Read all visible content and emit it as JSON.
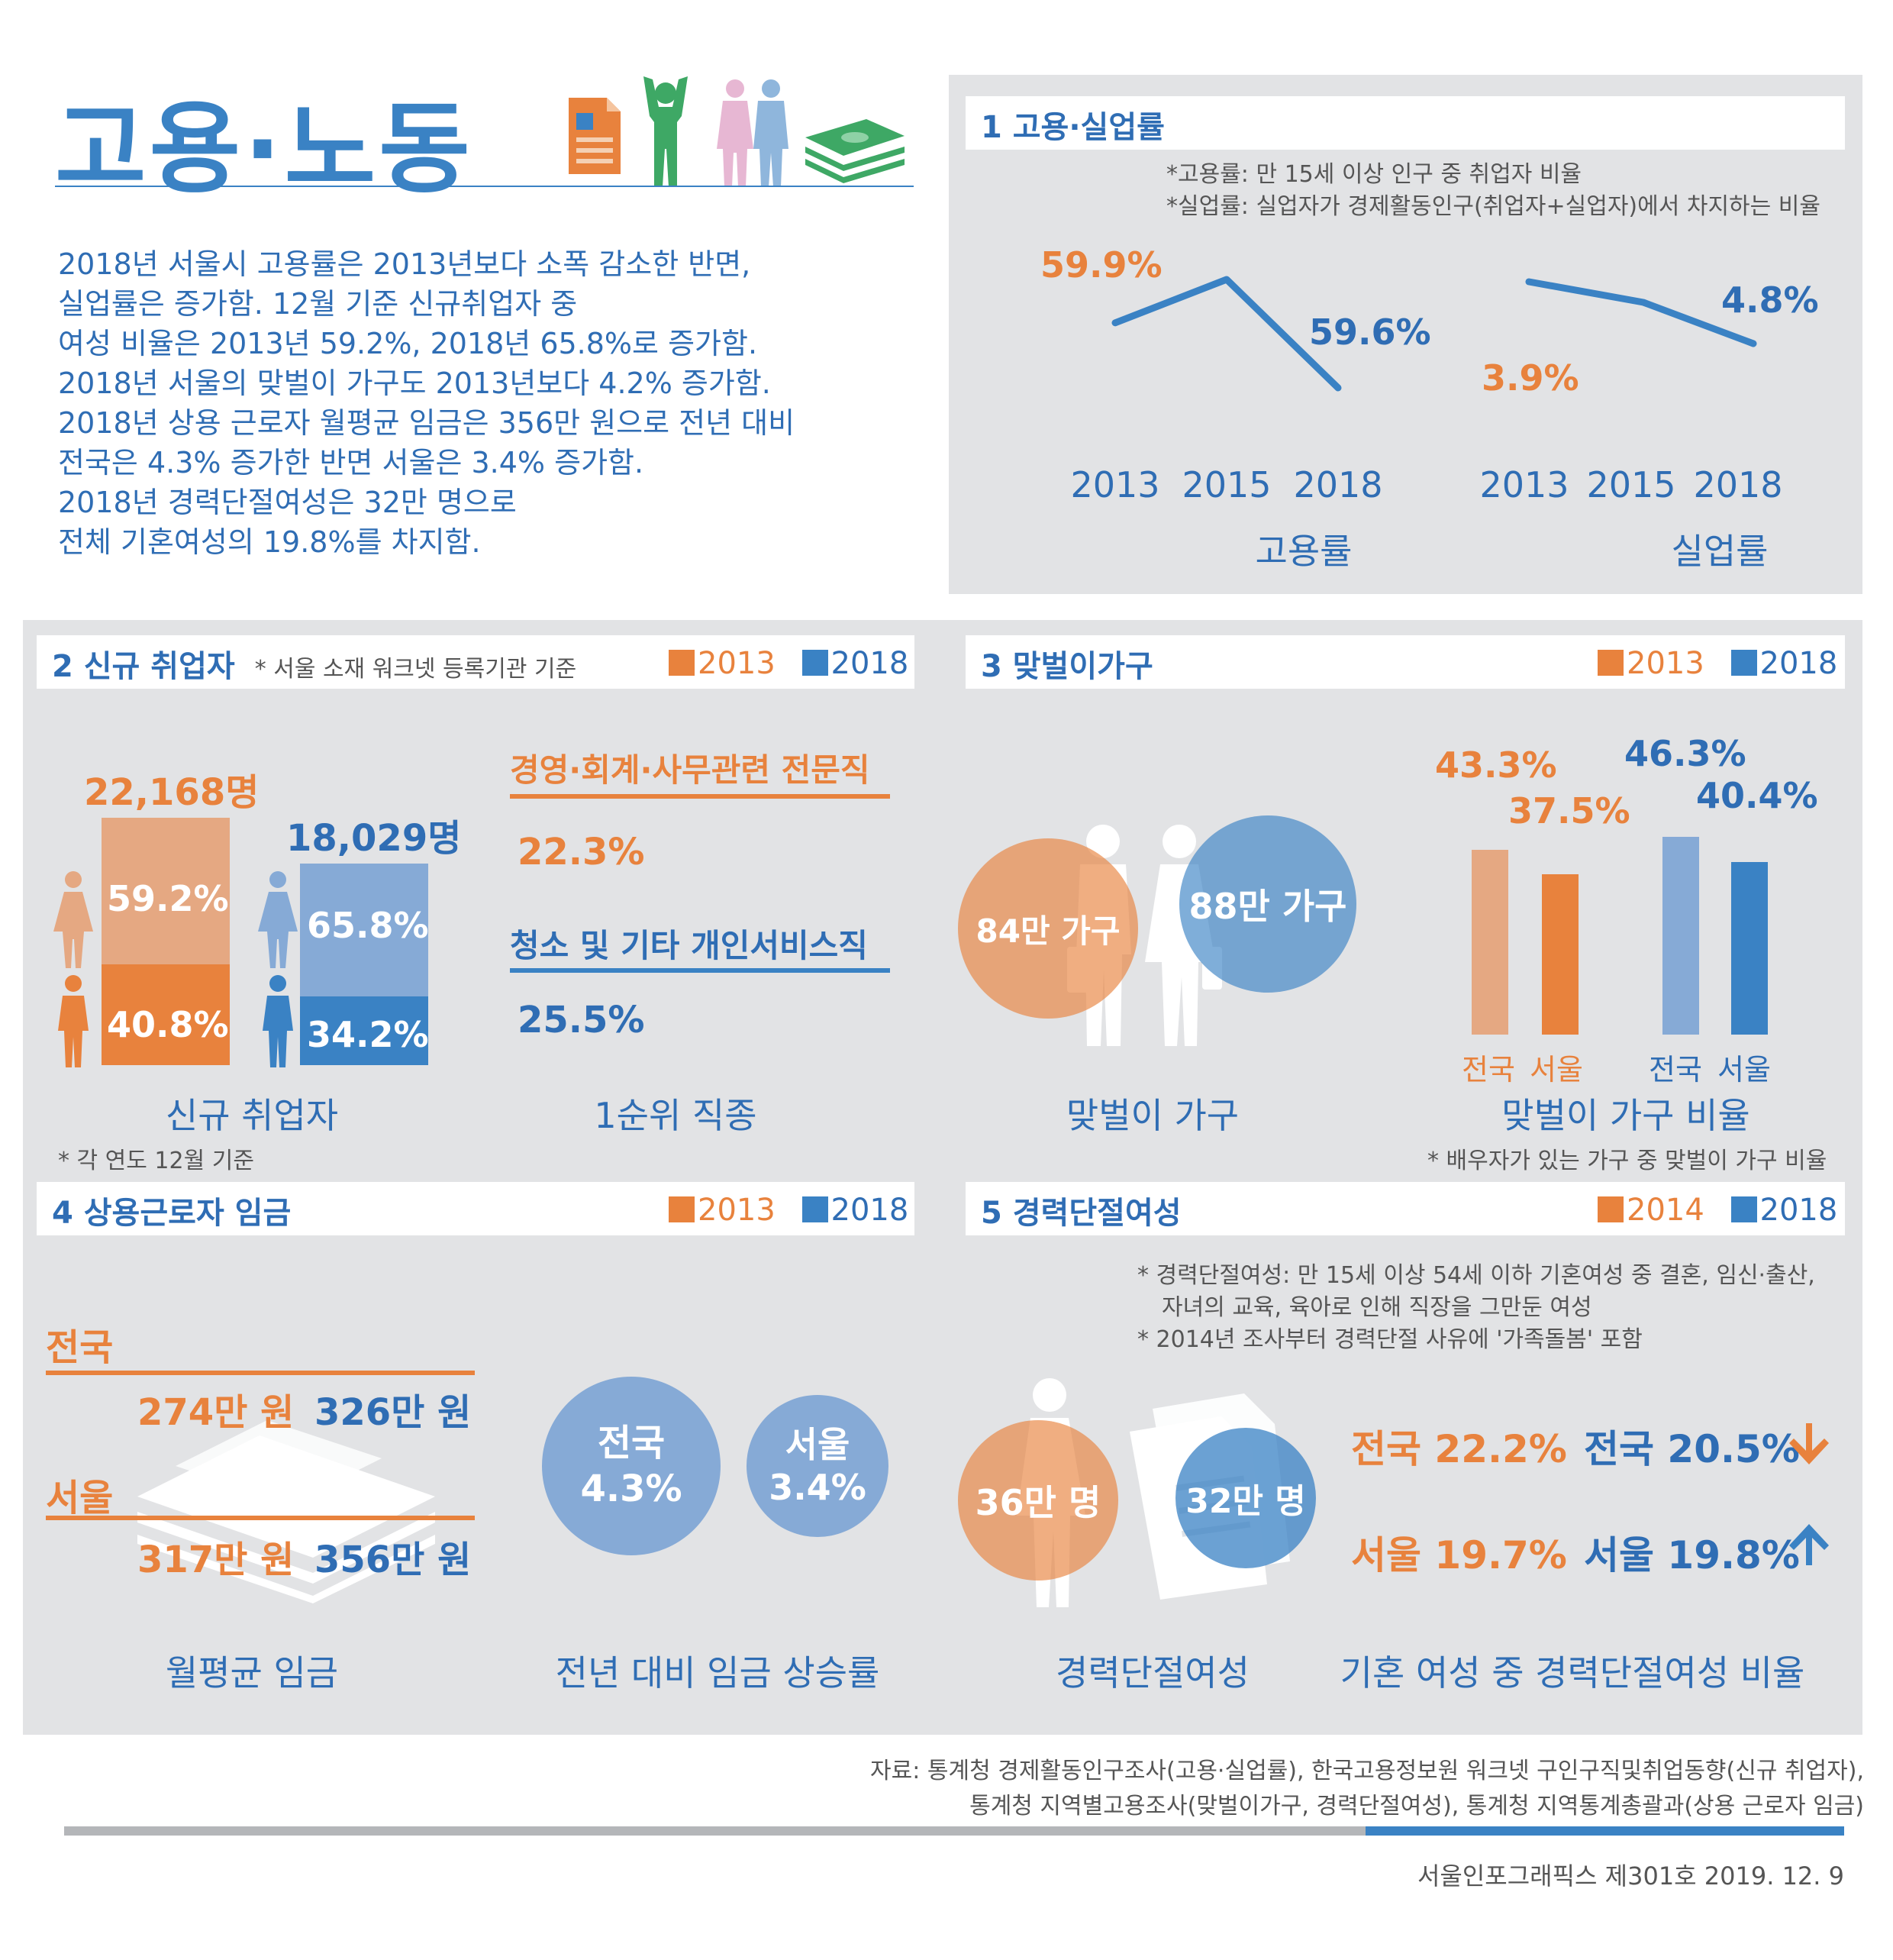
{
  "header": {
    "title": "고용·노동",
    "intro": [
      "2018년 서울시 고용률은 2013년보다 소폭 감소한 반면,",
      "실업률은 증가함. 12월 기준 신규취업자 중",
      "여성 비율은 2013년 59.2%, 2018년 65.8%로 증가함.",
      "2018년 서울의 맞벌이 가구도 2013년보다 4.2% 증가함.",
      "2018년 상용 근로자 월평균 임금은 356만 원으로 전년 대비",
      "전국은 4.3% 증가한 반면 서울은 3.4% 증가함.",
      "2018년 경력단절여성은 32만 명으로",
      "전체 기혼여성의 19.8%를 차지함."
    ]
  },
  "colors": {
    "orange": "#e8823d",
    "blue": "#3a82c4",
    "light_orange": "#e5a882",
    "light_blue": "#86aad6",
    "panel": "#e2e3e5"
  },
  "icons": [
    "document-icon",
    "cheering-person-icon",
    "couple-icon",
    "money-stack-icon",
    "female-icon",
    "male-icon",
    "couple-silhouette-icon",
    "woman-silhouette-icon",
    "papers-icon",
    "document-stack-icon",
    "arrow-down-icon",
    "arrow-up-icon"
  ],
  "section1": {
    "title": "1  고용·실업률",
    "notes": [
      "*고용률: 만 15세 이상 인구 중 취업자 비율",
      "*실업률: 실업자가 경제활동인구(취업자+실업자)에서 차지하는 비율"
    ],
    "emp_labels": [
      "59.9%",
      "59.6%"
    ],
    "unemp_labels": [
      "3.9%",
      "4.8%"
    ],
    "emp_caption": "고용률",
    "unemp_caption": "실업률"
  },
  "section2": {
    "title": "2  신규 취업자",
    "note": "*  서울 소재 워크넷 등록기관 기준",
    "legend": [
      "2013",
      "2018"
    ],
    "total_2013": "22,168명",
    "total_2018": "18,029명",
    "female_2013": "59.2%",
    "male_2013": "40.8%",
    "female_2018": "65.8%",
    "male_2018": "34.2%",
    "top_job_2013": "경영·회계·사무관련 전문직",
    "top_job_2013_value": "22.3%",
    "top_job_2018": "청소 및 기타 개인서비스직",
    "top_job_2018_value": "25.5%",
    "caption_left": "신규 취업자",
    "caption_right": "1순위 직종",
    "footnote": "*  각 연도 12월 기준"
  },
  "section3": {
    "title": "3  맞벌이가구",
    "legend": [
      "2013",
      "2018"
    ],
    "households_2013": "84만 가구",
    "households_2018": "88만 가구",
    "bar_labels": [
      "43.3%",
      "37.5%",
      "46.3%",
      "40.4%"
    ],
    "bar_categories": [
      "전국",
      "서울",
      "전국",
      "서울"
    ],
    "caption_left": "맞벌이 가구",
    "caption_right": "맞벌이 가구 비율",
    "footnote": "* 배우자가 있는 가구 중 맞벌이 가구 비율"
  },
  "section4": {
    "title": "4  상용근로자 임금",
    "legend": [
      "2013",
      "2018"
    ],
    "national_label": "전국",
    "national_2013": "274만 원",
    "national_2018": "326만 원",
    "seoul_label": "서울",
    "seoul_2013": "317만 원",
    "seoul_2018": "356만 원",
    "growth_national_label": "전국",
    "growth_national_value": "4.3%",
    "growth_seoul_label": "서울",
    "growth_seoul_value": "3.4%",
    "caption_left": "월평균 임금",
    "caption_right": "전년 대비 임금 상승률"
  },
  "section5": {
    "title": "5  경력단절여성",
    "legend": [
      "2014",
      "2018"
    ],
    "notes": [
      "* 경력단절여성: 만 15세 이상 54세 이하 기혼여성 중 결혼, 임신·출산,",
      "자녀의 교육, 육아로 인해 직장을 그만둔 여성",
      "* 2014년 조사부터 경력단절 사유에 '가족돌봄' 포함"
    ],
    "count_2014": "36만 명",
    "count_2018": "32만 명",
    "national_2014": "전국 22.2%",
    "national_2018": "전국 20.5%",
    "seoul_2014": "서울 19.7%",
    "seoul_2018": "서울 19.8%",
    "caption_left": "경력단절여성",
    "caption_right": "기혼 여성 중 경력단절여성 비율"
  },
  "footer": {
    "source": [
      "자료: 통계청 경제활동인구조사(고용·실업률), 한국고용정보원 워크넷 구인구직및취업동향(신규 취업자),",
      "통계청 지역별고용조사(맞벌이가구, 경력단절여성), 통계청 지역통계총괄과(상용 근로자 임금)"
    ],
    "issue": "서울인포그래픽스 제301호 2019. 12. 9"
  },
  "chart_data": [
    {
      "type": "line",
      "title": "고용률",
      "x": [
        "2013",
        "2015",
        "2018"
      ],
      "series": [
        {
          "values": [
            59.9,
            60.1,
            59.6
          ]
        }
      ]
    },
    {
      "type": "line",
      "title": "실업률",
      "x": [
        "2013",
        "2015",
        "2018"
      ],
      "series": [
        {
          "values": [
            3.9,
            4.2,
            4.8
          ]
        }
      ]
    },
    {
      "type": "bar",
      "title": "신규 취업자",
      "categories": [
        "2013",
        "2018"
      ],
      "totals": [
        22168,
        18029
      ],
      "series": [
        {
          "name": "",
          "values": [
            59.2,
            65.8
          ]
        },
        {
          "name": "",
          "values": [
            40.8,
            34.2
          ]
        }
      ]
    },
    {
      "type": "bar",
      "title": "맞벌이 가구 비율",
      "categories": [
        "전국",
        "서울"
      ],
      "series": [
        {
          "name": "2013",
          "values": [
            43.3,
            37.5
          ]
        },
        {
          "name": "2018",
          "values": [
            46.3,
            40.4
          ]
        }
      ]
    },
    {
      "type": "table",
      "title": "월평균 임금",
      "rows": [
        {
          "region": "전국",
          "2013": 274,
          "2018": 326
        },
        {
          "region": "서울",
          "2013": 317,
          "2018": 356
        }
      ],
      "growth": [
        {
          "region": "전국",
          "value": 4.3
        },
        {
          "region": "서울",
          "value": 3.4
        }
      ]
    },
    {
      "type": "table",
      "title": "경력단절여성",
      "counts": {
        "2014": 36,
        "2018": 32
      },
      "ratio": [
        {
          "region": "전국",
          "2014": 22.2,
          "2018": 20.5
        },
        {
          "region": "서울",
          "2014": 19.7,
          "2018": 19.8
        }
      ]
    }
  ]
}
